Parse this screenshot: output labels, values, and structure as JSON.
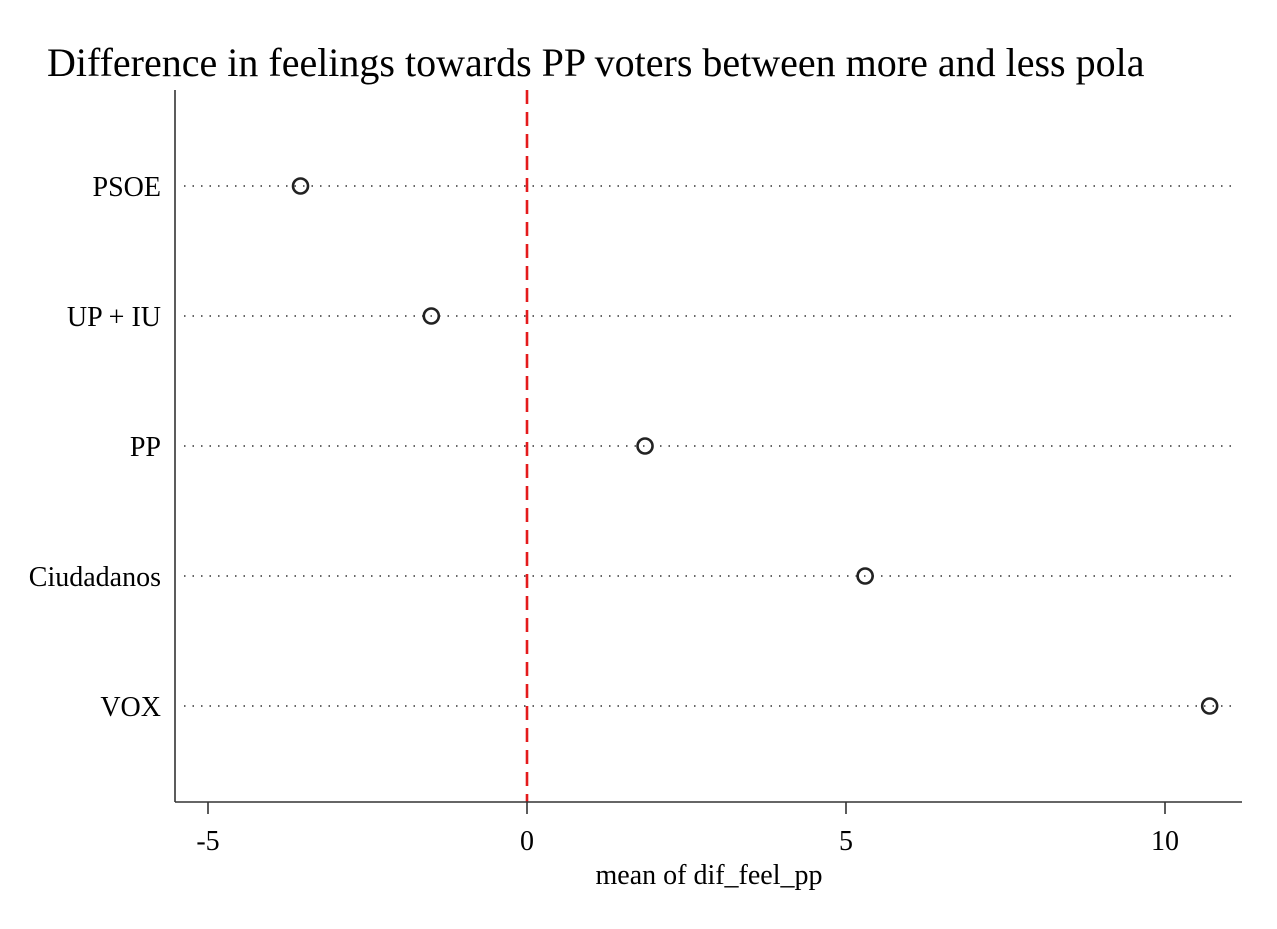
{
  "chart_data": {
    "type": "scatter",
    "title": "Difference in feelings towards PP voters between more and less pola",
    "xlabel": "mean of dif_feel_pp",
    "ylabel": "",
    "categories": [
      "PSOE",
      "UP + IU",
      "PP",
      "Ciudadanos",
      "VOX"
    ],
    "values": [
      -3.55,
      -1.5,
      1.85,
      5.3,
      10.7
    ],
    "xlim": [
      -5.5,
      11.2
    ],
    "xticks": [
      -5,
      0,
      5,
      10
    ],
    "xtick_labels": [
      "-5",
      "0",
      "5",
      "10"
    ],
    "reference_line": {
      "x": 0,
      "color": "#e41a1c",
      "style": "dashed"
    },
    "grid": false,
    "guide_lines": "dotted",
    "marker": "hollow-circle",
    "colors": {
      "marker": "#222222",
      "reference": "#e41a1c",
      "axis": "#333333"
    }
  }
}
